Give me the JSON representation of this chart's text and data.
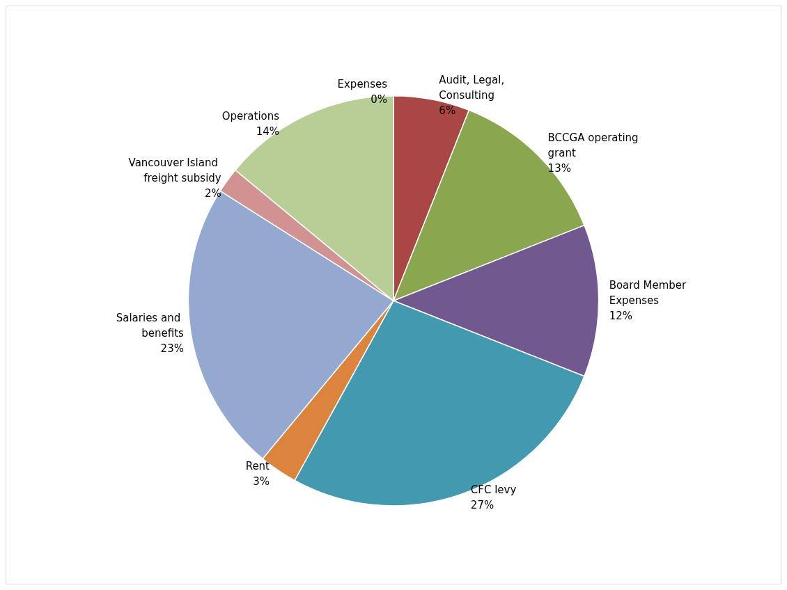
{
  "chart_data": {
    "type": "pie",
    "categories": [
      "Expenses",
      "Audit, Legal, Consulting",
      "BCCGA operating grant",
      "Board Member Expenses",
      "CFC levy",
      "Rent",
      "Salaries and benefits",
      "Vancouver Island freight subsidy",
      "Operations"
    ],
    "values": [
      0,
      6,
      13,
      12,
      27,
      3,
      23,
      2,
      14
    ],
    "value_labels": [
      "0%",
      "6%",
      "13%",
      "12%",
      "27%",
      "3%",
      "23%",
      "2%",
      "14%"
    ],
    "colors": [
      "#4f81bd",
      "#a94744",
      "#8aa64e",
      "#71588f",
      "#4299b0",
      "#db843d",
      "#93a9cf",
      "#d19392",
      "#b9cd96"
    ],
    "legend": false
  }
}
